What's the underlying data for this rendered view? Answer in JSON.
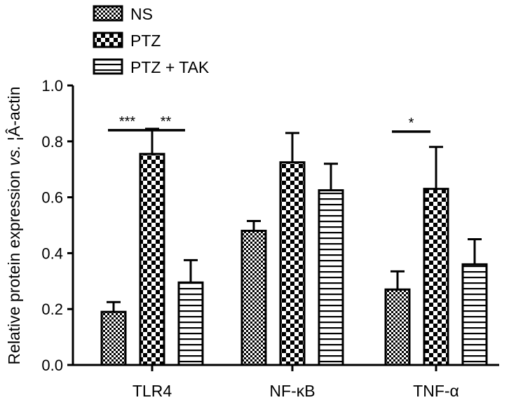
{
  "chart_data": {
    "type": "bar",
    "ylabel_prefix": "Relative protein expression ",
    "ylabel_italic": "vs.",
    "ylabel_suffix": " ¦Â-actin",
    "ylim": [
      0,
      1.0
    ],
    "yticks": [
      "0.0",
      "0.2",
      "0.4",
      "0.6",
      "0.8",
      "1.0"
    ],
    "categories": [
      "TLR4",
      "NF-κB",
      "TNF-α"
    ],
    "legend_position": "top-left",
    "series": [
      {
        "name": "NS",
        "pattern": "fine-check",
        "values": [
          0.19,
          0.48,
          0.27
        ],
        "errors": [
          0.035,
          0.035,
          0.065
        ]
      },
      {
        "name": "PTZ",
        "pattern": "coarse-check",
        "values": [
          0.755,
          0.725,
          0.63
        ],
        "errors": [
          0.09,
          0.105,
          0.15
        ]
      },
      {
        "name": "PTZ + TAK",
        "pattern": "horizontal-lines",
        "values": [
          0.295,
          0.625,
          0.36
        ],
        "errors": [
          0.08,
          0.095,
          0.09
        ]
      }
    ],
    "significance": [
      {
        "label": "***",
        "category": 0,
        "from_series": 0,
        "to_series": 1,
        "y": 0.84
      },
      {
        "label": "**",
        "category": 0,
        "from_series": 1,
        "to_series": 2,
        "y": 0.84
      },
      {
        "label": "*",
        "category": 2,
        "from_series": 0,
        "to_series": 1,
        "y": 0.835
      }
    ],
    "colors": {
      "ink": "#000000",
      "fill": "#ffffff"
    }
  }
}
